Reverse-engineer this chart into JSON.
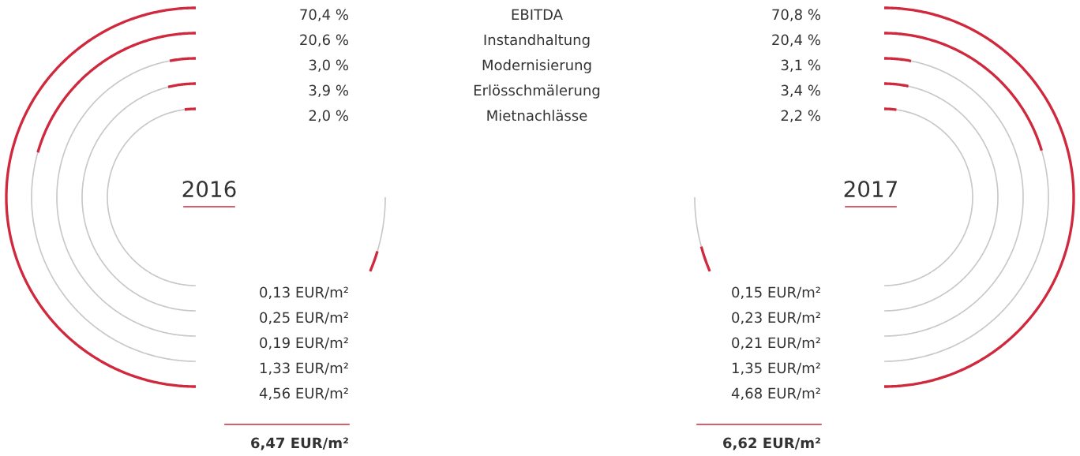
{
  "chart_data": {
    "type": "other",
    "categories": [
      "EBITDA",
      "Instandhaltung",
      "Modernisierung",
      "Erlösschmälerung",
      "Mietnachlässe"
    ],
    "annotations": [
      "2016",
      "2017",
      "0,13 EUR/m²",
      "0,25 EUR/m²",
      "0,19 EUR/m²",
      "1,33 EUR/m²",
      "4,56 EUR/m²",
      "0,15 EUR/m²",
      "0,23 EUR/m²",
      "0,21 EUR/m²",
      "1,35 EUR/m²",
      "4,68 EUR/m²"
    ],
    "series": [
      {
        "color": "#d0283c",
        "values": [
          70.4,
          20.6,
          3.0,
          3.9,
          2.0
        ],
        "value_labels": [
          "70,4 %",
          "20,6 %",
          "3,0 %",
          "3,9 %",
          "2,0 %"
        ]
      },
      {
        "color": "#d0283c",
        "values": [
          70.8,
          20.4,
          3.1,
          3.4,
          2.2
        ],
        "value_labels": [
          "70,8 %",
          "20,4 %",
          "3,1 %",
          "3,4 %",
          "2,2 %"
        ]
      }
    ],
    "totals": [
      "6,47 EUR/m²",
      "6,62 EUR/m²"
    ]
  }
}
